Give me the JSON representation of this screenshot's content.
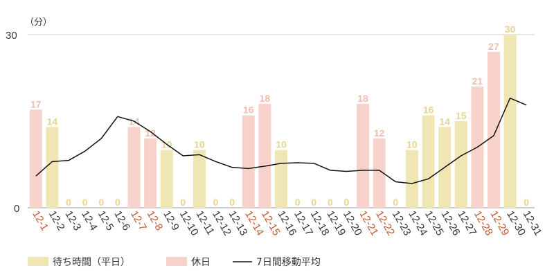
{
  "chart_data": {
    "type": "bar",
    "unit_label": "（分）",
    "y_ticks": [
      "0",
      "30"
    ],
    "ylim": [
      0,
      30
    ],
    "categories": [
      "12-1",
      "12-2",
      "12-3",
      "12-4",
      "12-5",
      "12-6",
      "12-7",
      "12-8",
      "12-9",
      "12-10",
      "12-11",
      "12-12",
      "12-13",
      "12-14",
      "12-15",
      "12-16",
      "12-17",
      "12-18",
      "12-19",
      "12-20",
      "12-21",
      "12-22",
      "12-23",
      "12-24",
      "12-25",
      "12-26",
      "12-27",
      "12-28",
      "12-29",
      "12-30",
      "12-31"
    ],
    "values": [
      17,
      14,
      0,
      0,
      0,
      0,
      14,
      12,
      10,
      0,
      10,
      0,
      0,
      16,
      18,
      10,
      0,
      0,
      0,
      0,
      18,
      12,
      0,
      10,
      16,
      14,
      15,
      21,
      27,
      30,
      0
    ],
    "day_type": [
      "holiday",
      "weekday",
      "weekday",
      "weekday",
      "weekday",
      "weekday",
      "holiday",
      "holiday",
      "weekday",
      "weekday",
      "weekday",
      "weekday",
      "weekday",
      "holiday",
      "holiday",
      "weekday",
      "weekday",
      "weekday",
      "weekday",
      "weekday",
      "holiday",
      "holiday",
      "weekday",
      "weekday",
      "weekday",
      "weekday",
      "weekday",
      "holiday",
      "holiday",
      "weekday",
      "weekday"
    ],
    "moving_average": {
      "name": "7日間移動平均",
      "values": [
        5.5,
        8.0,
        8.2,
        9.8,
        12.0,
        15.8,
        15.0,
        13.2,
        11.0,
        9.0,
        9.2,
        8.0,
        7.0,
        6.8,
        7.2,
        7.7,
        7.8,
        7.7,
        6.5,
        6.3,
        6.5,
        6.5,
        4.5,
        4.2,
        5.0,
        7.0,
        9.0,
        10.5,
        12.5,
        19.0,
        17.8
      ]
    },
    "legend": [
      {
        "label": "待ち時間（平日）",
        "kind": "weekday",
        "color": "#efe6b4"
      },
      {
        "label": "休日",
        "kind": "holiday",
        "color": "#f6d2cb"
      },
      {
        "label": "7日間移動平均",
        "kind": "line",
        "color": "#111111"
      }
    ],
    "colors": {
      "weekday_bar": "#efe6b4",
      "holiday_bar": "#f6d2cb",
      "weekday_value_label": "#e6d58e",
      "holiday_value_label": "#f0bcaf",
      "weekday_axis_label": "#333333",
      "holiday_axis_label": "#c9552c",
      "grid": "#cccccc",
      "line": "#111111"
    }
  }
}
